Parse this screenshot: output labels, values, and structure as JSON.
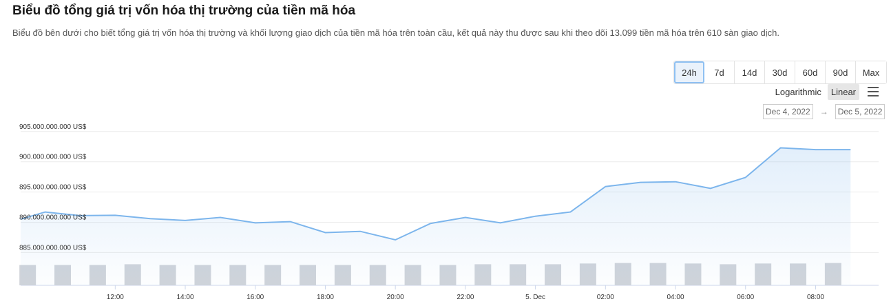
{
  "header": {
    "title": "Biểu đồ tổng giá trị vốn hóa thị trường của tiền mã hóa",
    "subtitle": "Biểu đồ bên dưới cho biết tổng giá trị vốn hóa thị trường và khối lượng giao dịch của tiền mã hóa trên toàn cầu, kết quả này thu được sau khi theo dõi 13.099 tiền mã hóa trên 610 sàn giao dịch."
  },
  "controls": {
    "ranges": [
      "24h",
      "7d",
      "14d",
      "30d",
      "60d",
      "90d",
      "Max"
    ],
    "active_range": "24h",
    "scales": [
      "Logarithmic",
      "Linear"
    ],
    "active_scale": "Linear",
    "menu_icon": "hamburger-menu-icon",
    "date_from": "Dec 4, 2022",
    "date_arrow": "→",
    "date_to": "Dec 5, 2022"
  },
  "chart_data": {
    "type": "area",
    "x_ticks": [
      "12:00",
      "14:00",
      "16:00",
      "18:00",
      "20:00",
      "22:00",
      "5. Dec",
      "02:00",
      "04:00",
      "06:00",
      "08:00"
    ],
    "x_tick_hours": [
      12,
      14,
      16,
      18,
      20,
      22,
      24,
      26,
      28,
      30,
      32
    ],
    "xlim_hours": [
      9.3,
      33.8
    ],
    "y_ticks": [
      "885.000.000.000 US$",
      "890.000.000.000 US$",
      "895.000.000.000 US$",
      "900.000.000.000 US$",
      "905.000.000.000 US$"
    ],
    "y_tick_values": [
      885000000000,
      890000000000,
      895000000000,
      900000000000,
      905000000000
    ],
    "ylim": [
      883000000000,
      906000000000
    ],
    "grid": true,
    "series": [
      {
        "kind": "market_cap",
        "color": "#7cb5ec",
        "x_hours": [
          9.3,
          10,
          11,
          12,
          13,
          14,
          15,
          16,
          17,
          18,
          19,
          20,
          21,
          22,
          23,
          24,
          25,
          26,
          27,
          28,
          29,
          30,
          31,
          32,
          33
        ],
        "values": [
          890500000000,
          891700000000,
          891100000000,
          891150000000,
          890600000000,
          890300000000,
          890800000000,
          889900000000,
          890100000000,
          888300000000,
          888500000000,
          887100000000,
          889800000000,
          890800000000,
          889900000000,
          891000000000,
          891700000000,
          895900000000,
          896600000000,
          896700000000,
          895600000000,
          897400000000,
          902300000000,
          902000000000,
          902000000000
        ]
      },
      {
        "kind": "volume",
        "color": "#d0d4da",
        "x_hours": [
          9.5,
          10.5,
          11.5,
          12.5,
          13.5,
          14.5,
          15.5,
          16.5,
          17.5,
          18.5,
          19.5,
          20.5,
          21.5,
          22.5,
          23.5,
          24.5,
          25.5,
          26.5,
          27.5,
          28.5,
          29.5,
          30.5,
          31.5,
          32.5
        ],
        "relative_heights": [
          0.82,
          0.82,
          0.82,
          0.85,
          0.82,
          0.82,
          0.82,
          0.82,
          0.82,
          0.82,
          0.82,
          0.82,
          0.82,
          0.85,
          0.85,
          0.85,
          0.88,
          0.9,
          0.9,
          0.88,
          0.85,
          0.88,
          0.88,
          0.9
        ]
      }
    ]
  }
}
